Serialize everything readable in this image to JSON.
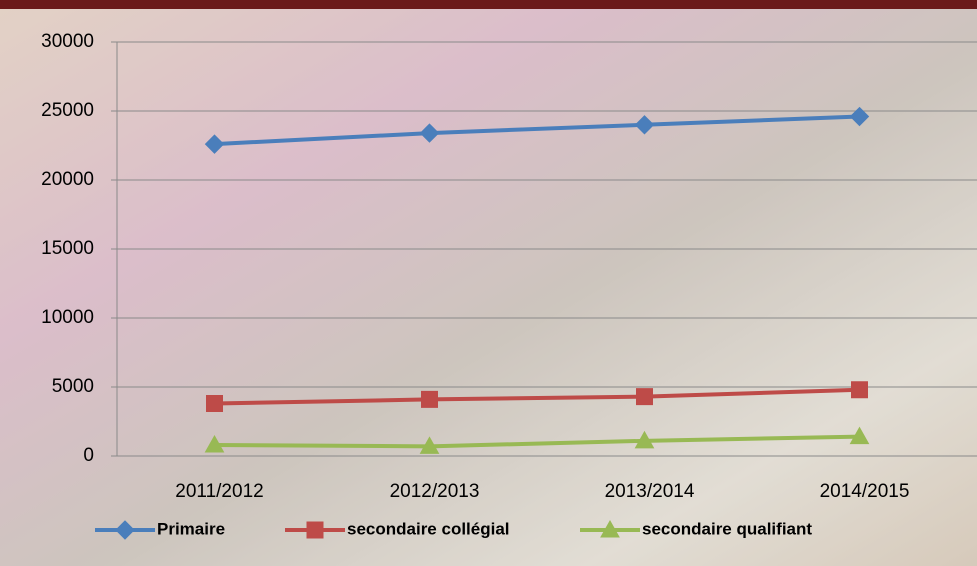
{
  "chart_data": {
    "type": "line",
    "categories": [
      "2011/2012",
      "2012/2013",
      "2013/2014",
      "2014/2015"
    ],
    "series": [
      {
        "name": "Primaire",
        "color": "#4a7ebb",
        "marker": "diamond",
        "values": [
          22600,
          23400,
          24000,
          24600
        ]
      },
      {
        "name": "secondaire collégial",
        "color": "#be4b48",
        "marker": "square",
        "values": [
          3800,
          4100,
          4300,
          4800
        ]
      },
      {
        "name": "secondaire qualifiant",
        "color": "#98b954",
        "marker": "triangle",
        "values": [
          800,
          700,
          1100,
          1400
        ]
      }
    ],
    "ylim": [
      0,
      30000
    ],
    "yticks": [
      0,
      5000,
      10000,
      15000,
      20000,
      25000,
      30000
    ],
    "grid": true,
    "legend": "bottom"
  }
}
